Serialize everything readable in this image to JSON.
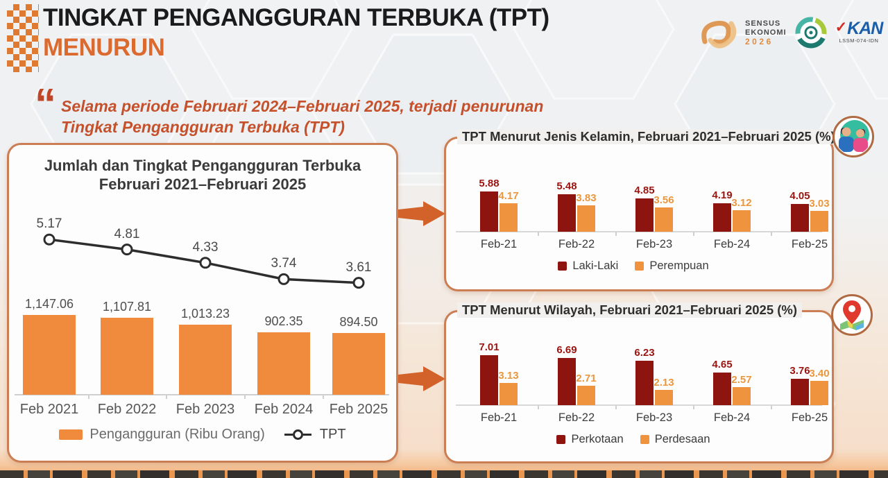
{
  "header": {
    "title_line1": "TINGKAT PENGANGGURAN TERBUKA (TPT)",
    "title_line2": "MENURUN"
  },
  "quote": {
    "mark": "“",
    "line1": "Selama periode Februari 2024–Februari 2025, terjadi penurunan",
    "line2": "Tingkat Pengangguran Terbuka (TPT)"
  },
  "logos": {
    "sensus": {
      "line1": "SENSUS",
      "line2": "EKONOMI",
      "year": "2026"
    },
    "kan": {
      "check": "✓",
      "name": "KAN",
      "sub": "LSSM-074-IDN"
    }
  },
  "colors": {
    "accent_orange": "#dc6a2e",
    "bar_orange": "#f08b3d",
    "dark_red": "#8e1410",
    "label_orange": "#e9973e",
    "panel_border": "#cb7e53",
    "quote_red": "#c4512c",
    "line_black": "#2d2d2d"
  },
  "chart_data": [
    {
      "id": "combo",
      "type": "bar+line",
      "title_line1": "Jumlah dan Tingkat Pengangguran Terbuka",
      "title_line2": "Februari 2021–Februari 2025",
      "categories": [
        "Feb 2021",
        "Feb 2022",
        "Feb 2023",
        "Feb 2024",
        "Feb 2025"
      ],
      "series": [
        {
          "name": "Pengangguran (Ribu Orang)",
          "type": "bar",
          "color": "#f08b3d",
          "values": [
            1147.06,
            1107.81,
            1013.23,
            902.35,
            894.5
          ],
          "labels": [
            "1,147.06",
            "1,107.81",
            "1,013.23",
            "902.35",
            "894.50"
          ]
        },
        {
          "name": "TPT",
          "type": "line",
          "color": "#2d2d2d",
          "values": [
            5.17,
            4.81,
            4.33,
            3.74,
            3.61
          ],
          "labels": [
            "5.17",
            "4.81",
            "4.33",
            "3.74",
            "3.61"
          ]
        }
      ],
      "legend_position": "bottom"
    },
    {
      "id": "gender",
      "type": "grouped-bar",
      "title_regular": "TPT Menurut Jenis Kelamin, ",
      "title_bold": "Februari 2021–Februari 2025 (%)",
      "categories": [
        "Feb-21",
        "Feb-22",
        "Feb-23",
        "Feb-24",
        "Feb-25"
      ],
      "series": [
        {
          "name": "Laki-Laki",
          "color": "#8e1410",
          "label_color": "#9a1510",
          "values": [
            5.88,
            5.48,
            4.85,
            4.19,
            4.05
          ]
        },
        {
          "name": "Perempuan",
          "color": "#f0933f",
          "label_color": "#e9973e",
          "values": [
            4.17,
            3.83,
            3.56,
            3.12,
            3.03
          ]
        }
      ],
      "legend_position": "bottom"
    },
    {
      "id": "region",
      "type": "grouped-bar",
      "title_regular": "TPT Menurut Wilayah, ",
      "title_bold": "Februari 2021–Februari 2025 (%)",
      "categories": [
        "Feb-21",
        "Feb-22",
        "Feb-23",
        "Feb-24",
        "Feb-25"
      ],
      "series": [
        {
          "name": "Perkotaan",
          "color": "#8e1410",
          "label_color": "#9a1510",
          "values": [
            7.01,
            6.69,
            6.23,
            4.65,
            3.76
          ]
        },
        {
          "name": "Perdesaan",
          "color": "#f0933f",
          "label_color": "#e9973e",
          "values": [
            3.13,
            2.71,
            2.13,
            2.57,
            3.4
          ]
        }
      ],
      "legend_position": "bottom"
    }
  ]
}
